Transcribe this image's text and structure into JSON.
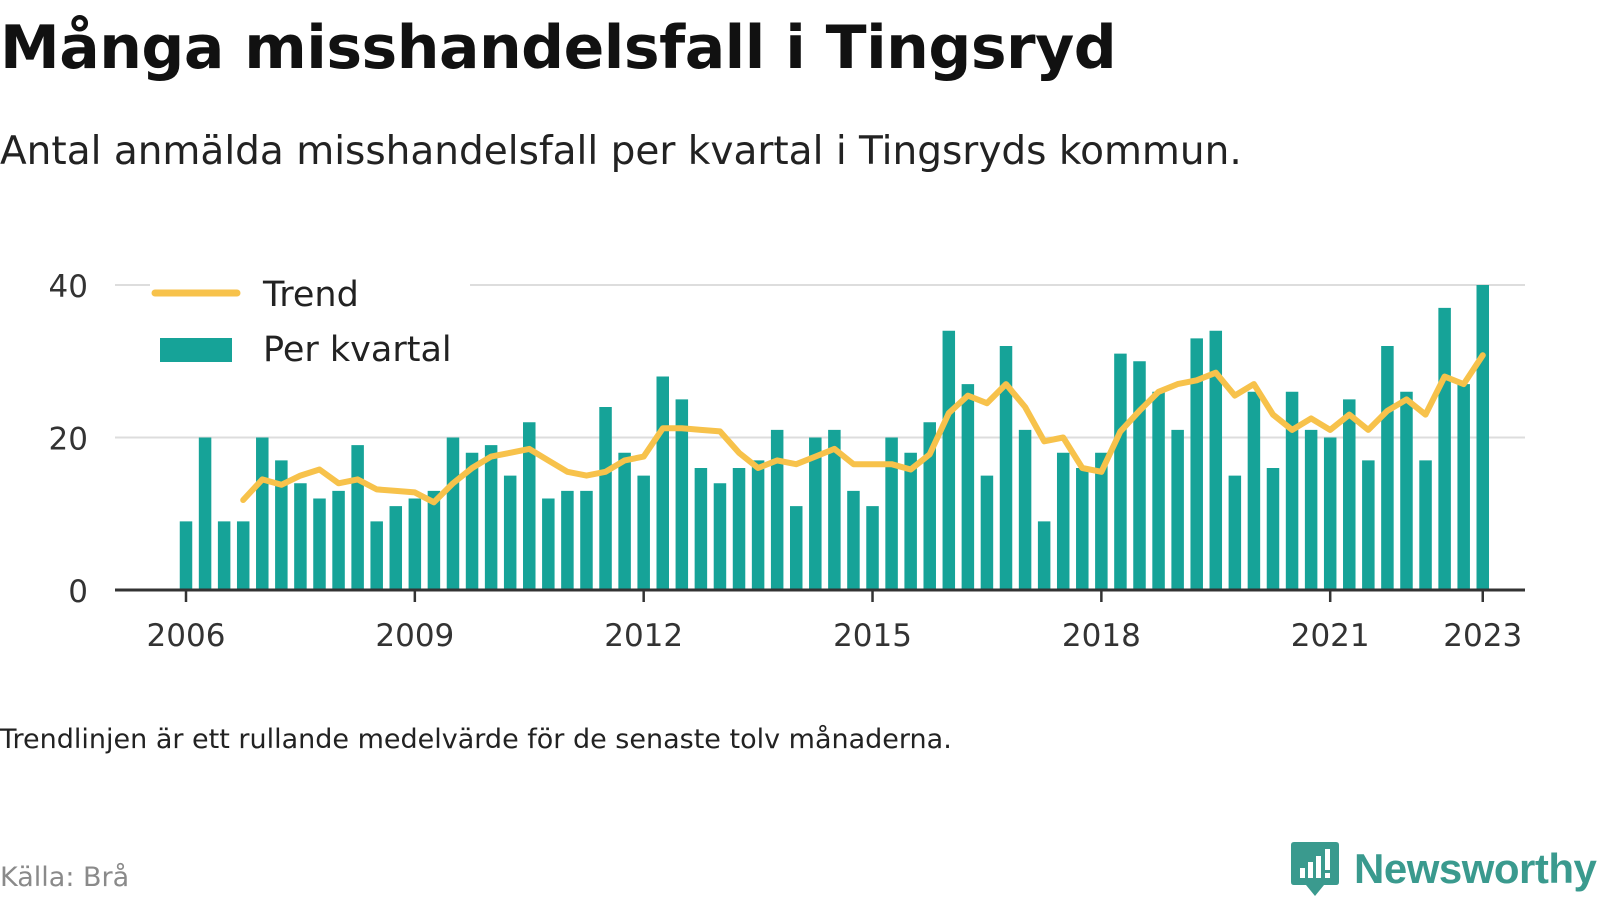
{
  "title": "Många misshandelsfall i Tingsryd",
  "subtitle": "Antal anmälda misshandelsfall per kvartal i Tingsryds kommun.",
  "note": "Trendlinjen är ett rullande medelvärde för de senaste tolv månaderna.",
  "source": "Källa: Brå",
  "brand": {
    "name": "Newsworthy",
    "icon": "newsworthy-logo-icon"
  },
  "colors": {
    "bar": "#16a398",
    "trend": "#f7c24b",
    "axis": "#333333",
    "grid": "#dddddd"
  },
  "chart_data": {
    "type": "bar",
    "x_start": "2006 Q1",
    "x_labels": [
      "2006",
      "2009",
      "2012",
      "2015",
      "2018",
      "2021",
      "2023"
    ],
    "y_ticks": [
      "0",
      "20",
      "40"
    ],
    "ylim": [
      0,
      40
    ],
    "legend_placement": "top-left",
    "grid": true,
    "series": [
      {
        "name": "Per kvartal",
        "type": "bar",
        "values": [
          9,
          20,
          9,
          9,
          20,
          17,
          14,
          12,
          13,
          19,
          9,
          11,
          12,
          13,
          20,
          18,
          19,
          15,
          22,
          12,
          13,
          13,
          24,
          18,
          15,
          28,
          25,
          16,
          14,
          16,
          17,
          21,
          11,
          20,
          21,
          13,
          11,
          20,
          18,
          22,
          34,
          27,
          15,
          32,
          21,
          9,
          18,
          16,
          18,
          31,
          30,
          26,
          21,
          33,
          34,
          15,
          26,
          16,
          26,
          21,
          20,
          25,
          17,
          32,
          26,
          17,
          37,
          27,
          40
        ]
      },
      {
        "name": "Trend",
        "type": "line",
        "values": [
          null,
          null,
          null,
          11.8,
          14.5,
          13.8,
          15,
          15.8,
          14,
          14.5,
          13.2,
          13,
          12.8,
          11.5,
          14,
          16,
          17.5,
          18,
          18.5,
          17,
          15.5,
          15,
          15.5,
          17,
          17.5,
          21.2,
          21.2,
          21,
          20.8,
          18,
          16,
          17,
          16.5,
          17.5,
          18.5,
          16.5,
          16.5,
          16.5,
          15.8,
          17.8,
          23.2,
          25.5,
          24.5,
          27,
          24,
          19.5,
          20,
          16,
          15.5,
          20.8,
          23.5,
          26,
          27,
          27.5,
          28.5,
          25.5,
          27,
          23,
          21,
          22.5,
          21,
          23,
          21,
          23.5,
          25,
          23,
          28,
          27,
          30.8
        ]
      }
    ]
  }
}
